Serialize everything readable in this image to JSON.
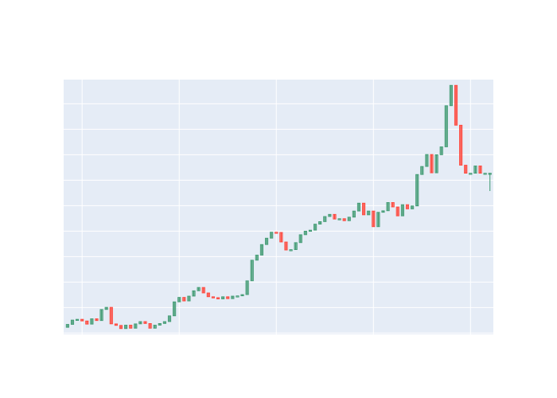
{
  "chart_data": {
    "type": "candlestick",
    "title": "",
    "xlabel": "",
    "ylabel": "",
    "x_tick_labels": [],
    "y_tick_labels": [],
    "grid": true,
    "legend": "none",
    "colors": {
      "increasing": "#3d9970",
      "decreasing": "#ff4136",
      "plot_background": "#e5ecf6",
      "grid": "#ffffff"
    },
    "x": [
      1,
      2,
      3,
      4,
      5,
      6,
      7,
      8,
      9,
      10,
      11,
      12,
      13,
      14,
      15,
      16,
      17,
      18,
      19,
      20,
      21,
      22,
      23,
      24,
      25,
      26,
      27,
      28,
      29,
      30,
      31,
      32,
      33,
      34,
      35,
      36,
      37,
      38,
      39,
      40,
      41,
      42,
      43,
      44,
      45,
      46,
      47,
      48,
      49,
      50,
      51,
      52,
      53,
      54,
      55,
      56,
      57,
      58,
      59,
      60,
      61,
      62,
      63,
      64,
      65,
      66,
      67,
      68,
      69,
      70,
      71,
      72,
      73,
      74,
      75,
      76,
      77,
      78,
      79,
      80,
      81,
      82,
      83,
      84,
      85,
      86,
      87,
      88
    ],
    "open": [
      105.5,
      107.8,
      111.2,
      111.8,
      110.5,
      108.0,
      112.2,
      110.8,
      119.5,
      121.2,
      108.2,
      107.0,
      104.5,
      107.2,
      104.8,
      108.2,
      110.0,
      108.5,
      104.8,
      107.2,
      108.5,
      110.0,
      114.5,
      125.5,
      129.0,
      126.2,
      130.0,
      134.2,
      136.8,
      132.5,
      129.5,
      128.8,
      127.8,
      129.5,
      128.0,
      130.0,
      130.2,
      131.2,
      142.0,
      158.2,
      162.2,
      170.5,
      175.5,
      180.2,
      180.0,
      172.5,
      166.2,
      166.5,
      172.0,
      178.2,
      181.0,
      181.8,
      186.5,
      188.5,
      192.5,
      194.2,
      190.5,
      190.8,
      189.2,
      192.0,
      196.8,
      203.0,
      193.8,
      196.8,
      184.5,
      195.8,
      197.0,
      203.5,
      200.0,
      193.0,
      201.8,
      198.5,
      200.8,
      225.5,
      231.8,
      241.2,
      226.8,
      241.0,
      247.2,
      279.5,
      295.5,
      264.2,
      232.8,
      226.5,
      226.5,
      232.2,
      226.5,
      226.5
    ],
    "close": [
      107.8,
      111.2,
      111.8,
      110.5,
      108.0,
      112.2,
      110.8,
      119.5,
      121.2,
      108.2,
      107.0,
      104.5,
      107.2,
      104.8,
      108.2,
      110.0,
      108.5,
      104.8,
      107.2,
      108.5,
      110.0,
      114.5,
      125.5,
      129.0,
      126.2,
      130.0,
      134.2,
      136.8,
      132.5,
      129.5,
      128.8,
      127.8,
      129.5,
      128.0,
      130.0,
      130.2,
      131.2,
      142.0,
      158.2,
      162.2,
      170.5,
      175.5,
      180.2,
      180.0,
      172.5,
      166.2,
      166.5,
      172.0,
      178.2,
      181.0,
      181.8,
      186.5,
      188.5,
      192.5,
      194.2,
      190.5,
      190.8,
      189.2,
      192.0,
      196.8,
      203.0,
      193.8,
      196.8,
      184.5,
      195.8,
      197.0,
      203.5,
      200.0,
      193.0,
      201.8,
      198.5,
      200.8,
      225.5,
      231.8,
      241.2,
      226.8,
      241.0,
      247.2,
      279.5,
      295.5,
      264.2,
      232.8,
      226.5,
      226.5,
      232.2,
      226.5,
      226.5,
      226.5
    ],
    "high": [
      107.8,
      111.2,
      111.8,
      111.8,
      110.5,
      112.2,
      112.2,
      119.5,
      121.2,
      121.2,
      108.2,
      107.0,
      107.2,
      107.2,
      108.2,
      110.0,
      110.0,
      108.5,
      107.2,
      108.5,
      110.0,
      114.5,
      125.5,
      129.0,
      129.0,
      130.0,
      134.2,
      136.8,
      136.8,
      132.5,
      129.5,
      128.8,
      129.5,
      129.5,
      130.0,
      130.2,
      131.2,
      142.0,
      158.2,
      162.2,
      170.5,
      175.5,
      180.2,
      180.2,
      180.0,
      172.5,
      166.5,
      172.0,
      178.2,
      181.0,
      181.8,
      186.5,
      188.5,
      192.5,
      194.2,
      194.2,
      190.8,
      190.8,
      192.0,
      196.8,
      203.0,
      203.0,
      196.8,
      196.8,
      195.8,
      197.0,
      203.5,
      203.5,
      200.0,
      201.8,
      201.8,
      200.8,
      225.5,
      231.8,
      241.2,
      241.2,
      241.0,
      247.2,
      279.5,
      295.5,
      295.5,
      264.2,
      232.8,
      226.5,
      232.2,
      232.2,
      226.5,
      226.5
    ],
    "low": [
      105.5,
      107.8,
      111.2,
      110.5,
      108.0,
      108.0,
      110.8,
      110.8,
      119.5,
      108.2,
      107.0,
      104.5,
      104.5,
      104.8,
      104.8,
      108.2,
      108.5,
      104.8,
      104.8,
      107.2,
      108.5,
      110.0,
      114.5,
      125.5,
      126.2,
      126.2,
      130.0,
      134.2,
      132.5,
      129.5,
      128.8,
      127.8,
      127.8,
      128.0,
      128.0,
      130.0,
      130.2,
      131.2,
      142.0,
      158.2,
      162.2,
      170.5,
      175.5,
      180.0,
      172.5,
      166.2,
      166.2,
      166.5,
      172.0,
      178.2,
      181.0,
      181.8,
      186.5,
      188.5,
      192.5,
      190.5,
      190.5,
      189.2,
      189.2,
      192.0,
      196.8,
      193.8,
      193.8,
      184.5,
      184.5,
      195.8,
      197.0,
      200.0,
      193.0,
      193.0,
      198.5,
      198.5,
      200.8,
      225.5,
      231.8,
      226.8,
      226.8,
      241.0,
      247.2,
      279.5,
      264.2,
      232.8,
      226.5,
      226.5,
      226.5,
      226.5,
      226.5,
      212.5
    ],
    "ylim": [
      100,
      300
    ],
    "xlim": [
      0.2,
      88.7
    ],
    "x_gridlines": [
      4,
      24,
      44,
      64,
      84
    ],
    "y_gridlines": [
      101,
      121,
      141,
      161,
      181,
      201,
      221,
      241,
      261,
      281
    ]
  }
}
